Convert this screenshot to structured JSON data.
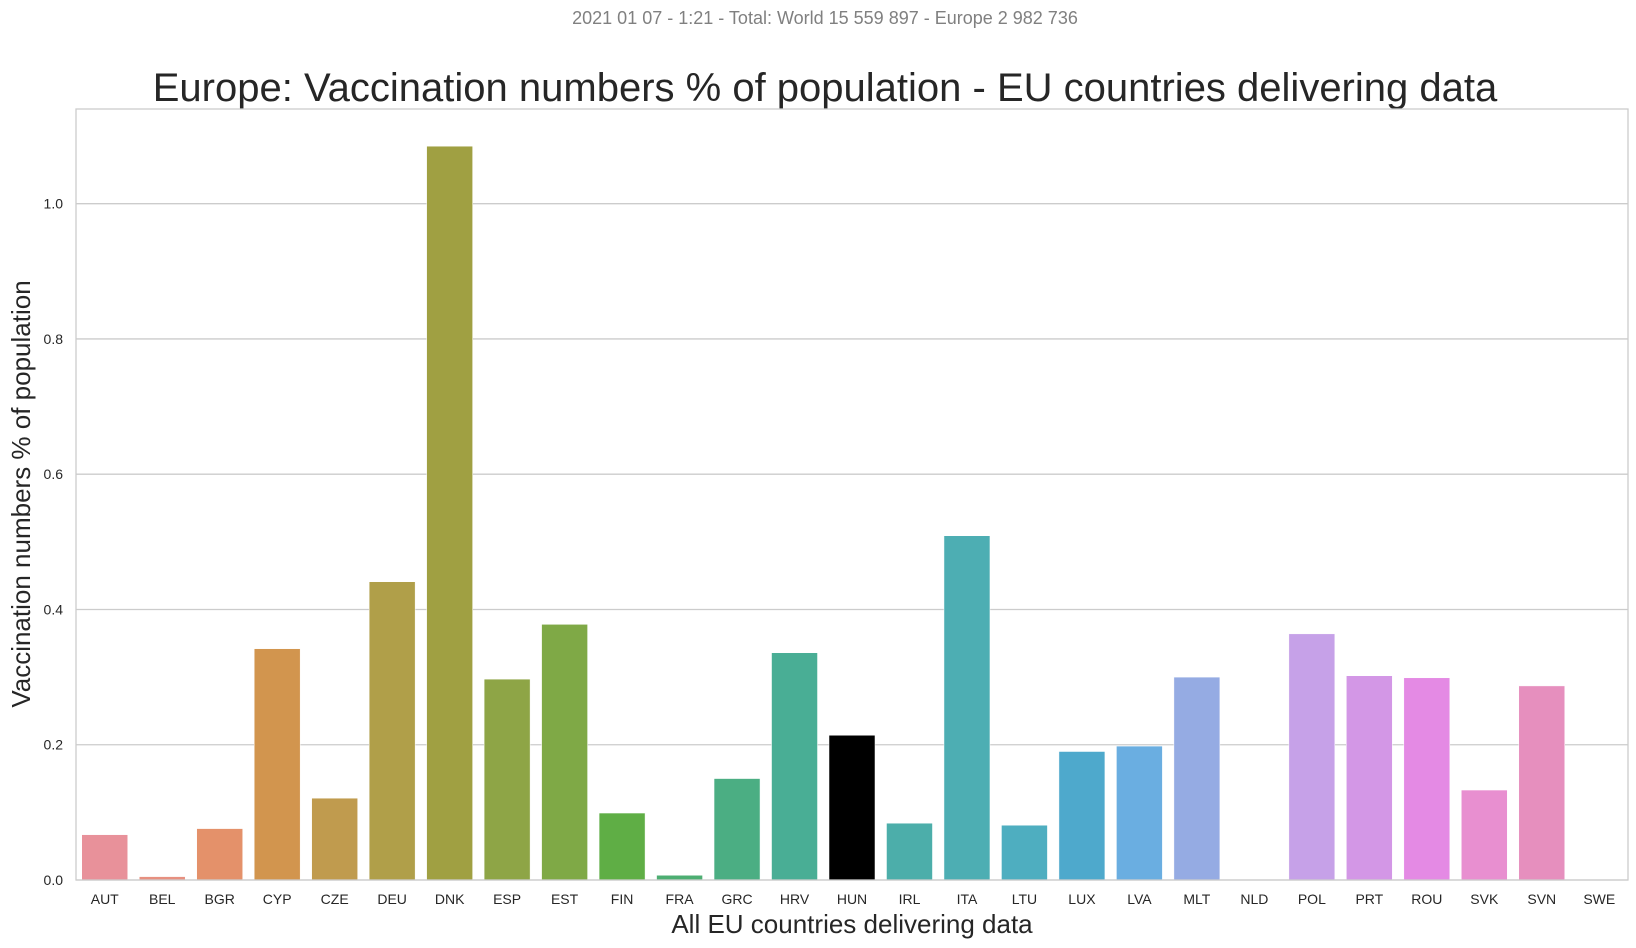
{
  "subtitle": "2021 01 07 - 1:21 - Total: World 15 559 897 - Europe 2 982 736",
  "chart_data": {
    "type": "bar",
    "title": "Europe: Vaccination numbers % of population - EU countries delivering data",
    "xlabel": "All EU countries delivering data",
    "ylabel": "Vaccination numbers % of population",
    "ylim": [
      0,
      1.14
    ],
    "yticks": [
      "0.0",
      "0.2",
      "0.4",
      "0.6",
      "0.8",
      "1.0"
    ],
    "grid": "horizontal",
    "categories": [
      "AUT",
      "BEL",
      "BGR",
      "CYP",
      "CZE",
      "DEU",
      "DNK",
      "ESP",
      "EST",
      "FIN",
      "FRA",
      "GRC",
      "HRV",
      "HUN",
      "IRL",
      "ITA",
      "LTU",
      "LUX",
      "LVA",
      "MLT",
      "NLD",
      "POL",
      "PRT",
      "ROU",
      "SVK",
      "SVN",
      "SWE"
    ],
    "values": [
      0.067,
      0.005,
      0.076,
      0.342,
      0.121,
      0.441,
      1.085,
      0.297,
      0.378,
      0.099,
      0.007,
      0.15,
      0.336,
      0.214,
      0.084,
      0.509,
      0.081,
      0.19,
      0.198,
      0.3,
      0.0,
      0.364,
      0.302,
      0.299,
      0.133,
      0.287,
      0.0
    ],
    "colors": [
      "#e8919a",
      "#e79080",
      "#e4916a",
      "#d2954e",
      "#c09b4e",
      "#b09f49",
      "#a0a042",
      "#8ea546",
      "#7fa946",
      "#5fae45",
      "#4dae72",
      "#4bae83",
      "#49ae95",
      "#4badа5",
      "#4caeaa",
      "#4daeb3",
      "#4eaec0",
      "#4ea9cc",
      "#6aaee1",
      "#95abe3",
      "#b0a0e8",
      "#c6a1e8",
      "#d397e6",
      "#e48ae4",
      "#e88fd0",
      "#e68fbe",
      "#e890ac"
    ]
  }
}
